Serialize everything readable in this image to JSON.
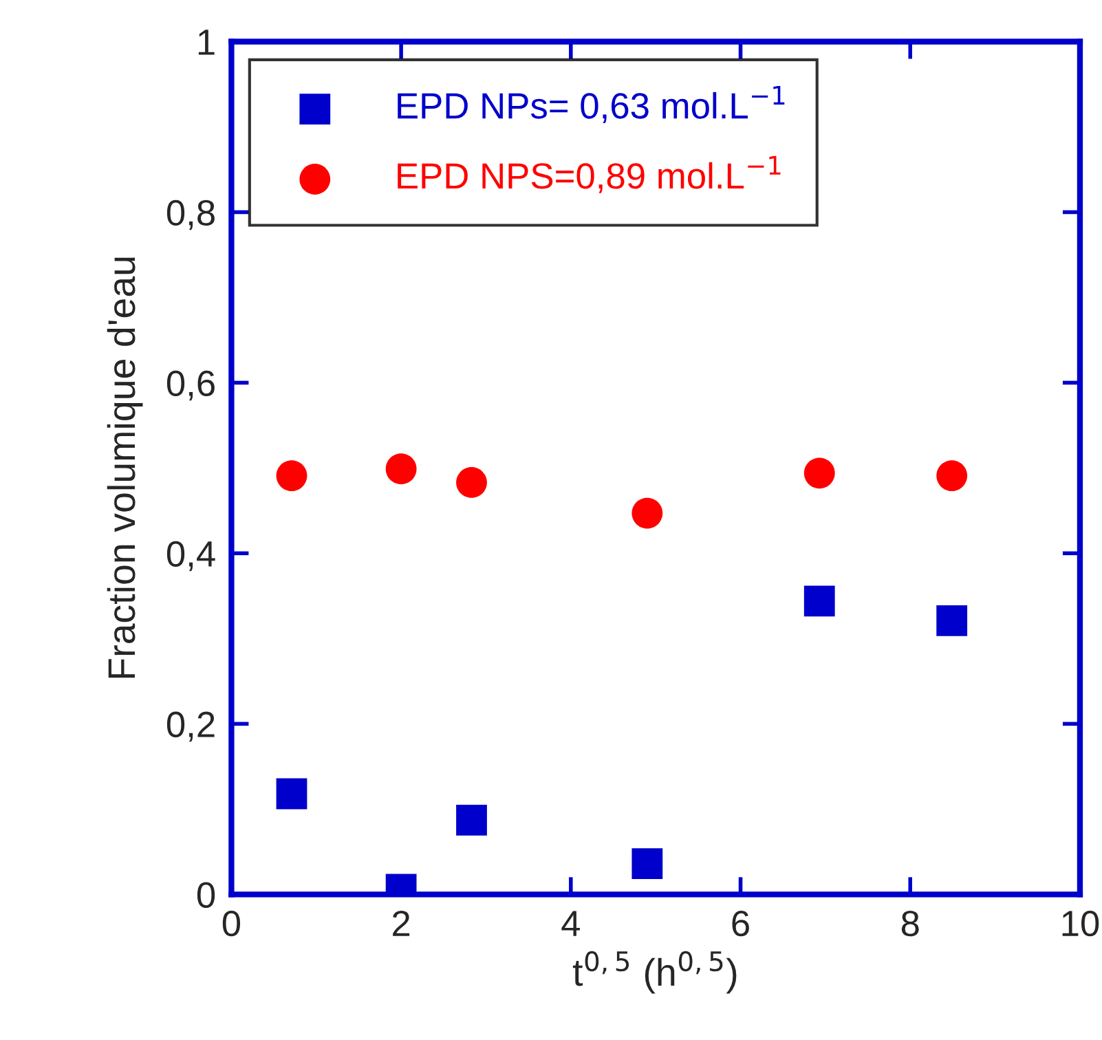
{
  "chart_data": {
    "type": "scatter",
    "xlabel": "t$^{0,5}$ (h$^{0,5}$)",
    "ylabel": "Fraction volumique d'eau",
    "series": [
      {
        "name": "EPD NPs= 0,63 mol.L$^{−1}$",
        "color": "#0000cc",
        "marker": "square",
        "x": [
          0.71,
          2.0,
          2.83,
          4.9,
          6.93,
          8.49
        ],
        "values": [
          0.118,
          0.006,
          0.087,
          0.036,
          0.344,
          0.321
        ]
      },
      {
        "name": "EPD NPS=0,89 mol.L$^{−1}$",
        "color": "#ff0000",
        "marker": "circle",
        "x": [
          0.71,
          2.0,
          2.83,
          4.9,
          6.93,
          8.49
        ],
        "values": [
          0.491,
          0.499,
          0.483,
          0.447,
          0.494,
          0.491
        ]
      }
    ],
    "xlim": [
      0,
      10
    ],
    "xticks": [
      0,
      2,
      4,
      6,
      8,
      10
    ],
    "ylim": [
      0,
      1
    ],
    "yticks": [
      0,
      {
        "value": 0.2,
        "label": "0,2"
      },
      {
        "value": 0.4,
        "label": "0,4"
      },
      {
        "value": 0.6,
        "label": "0,6"
      },
      {
        "value": 0.8,
        "label": "0,8"
      },
      1
    ],
    "grid": false,
    "legend": "top left"
  }
}
